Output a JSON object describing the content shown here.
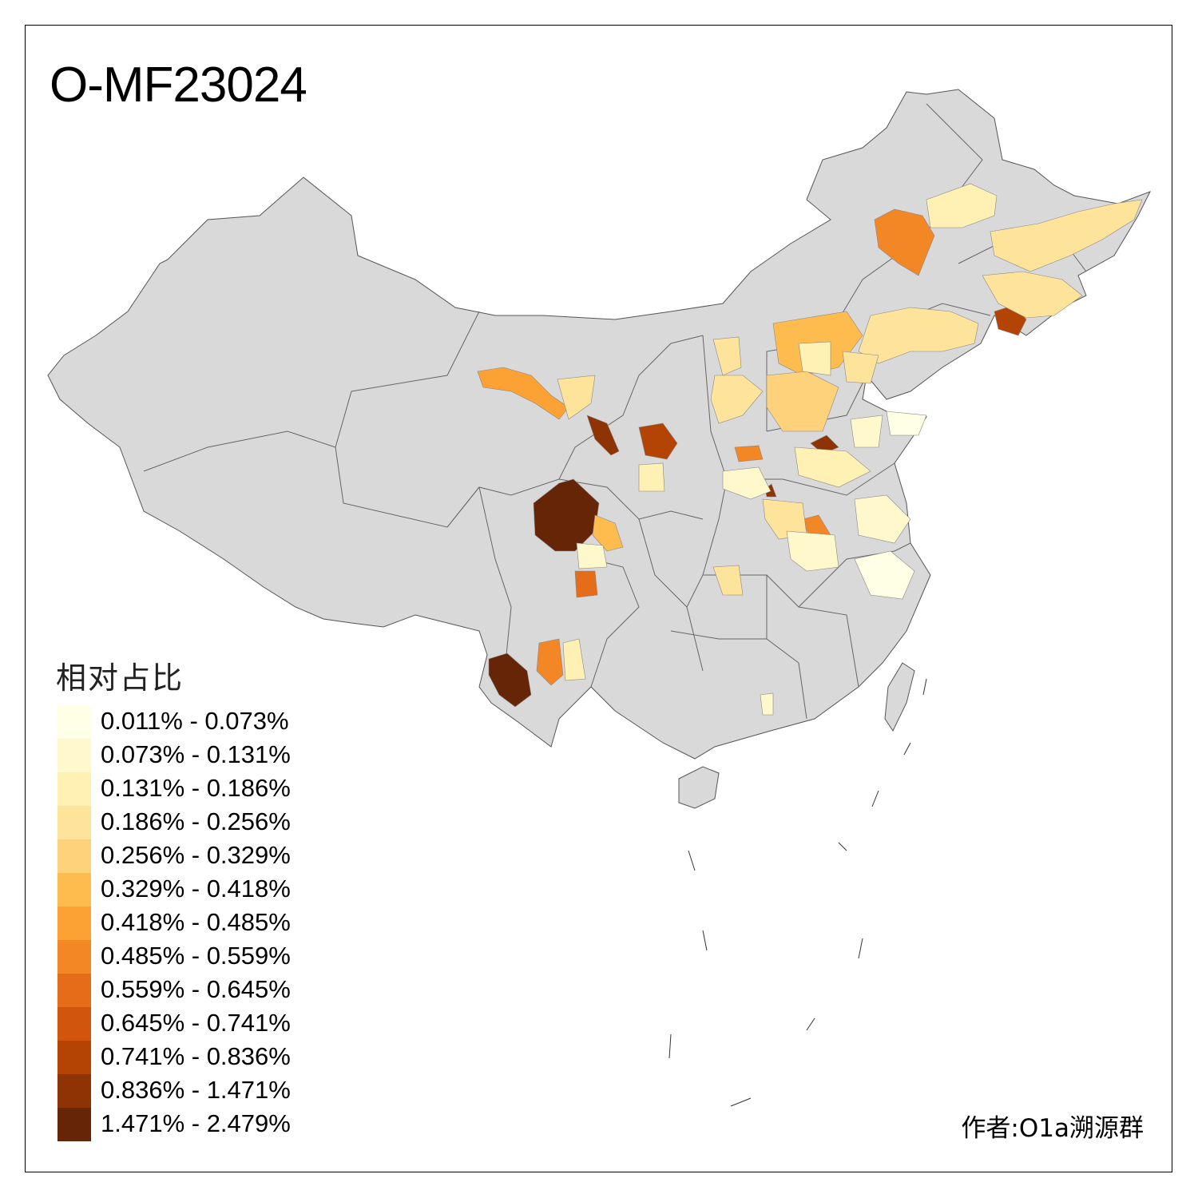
{
  "title": "O-MF23024",
  "legend": {
    "title": "相对占比",
    "items": [
      {
        "label": "0.011% - 0.073%",
        "color": "#FFFFE5"
      },
      {
        "label": "0.073% - 0.131%",
        "color": "#FFF8CD"
      },
      {
        "label": "0.131% - 0.186%",
        "color": "#FFF0B4"
      },
      {
        "label": "0.186% - 0.256%",
        "color": "#FEE39B"
      },
      {
        "label": "0.256% - 0.329%",
        "color": "#FED27A"
      },
      {
        "label": "0.329% - 0.418%",
        "color": "#FEBC4F"
      },
      {
        "label": "0.418% - 0.485%",
        "color": "#FCA234"
      },
      {
        "label": "0.485% - 0.559%",
        "color": "#F38726"
      },
      {
        "label": "0.559% - 0.645%",
        "color": "#E56D19"
      },
      {
        "label": "0.645% - 0.741%",
        "color": "#D1550C"
      },
      {
        "label": "0.741% - 0.836%",
        "color": "#B44404"
      },
      {
        "label": "0.836% - 1.471%",
        "color": "#8E3404"
      },
      {
        "label": "1.471% - 2.479%",
        "color": "#662506"
      }
    ]
  },
  "author": "作者:O1a溯源群",
  "colors": {
    "land": "#D9D9D9",
    "border": "#555555",
    "no_data": "#D9D9D9"
  }
}
